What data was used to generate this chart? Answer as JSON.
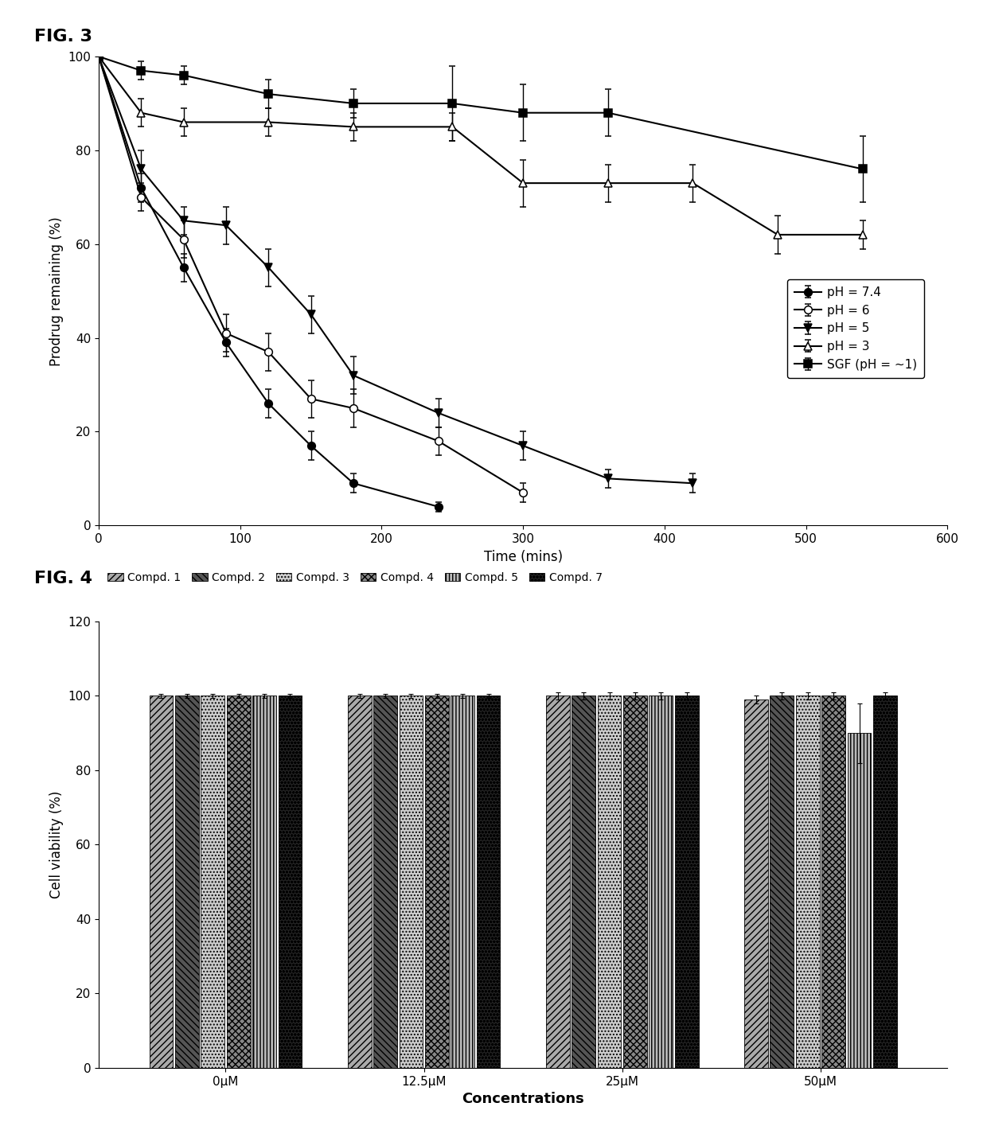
{
  "fig3": {
    "xlabel": "Time (mins)",
    "ylabel": "Prodrug remaining (%)",
    "xlim": [
      0,
      600
    ],
    "ylim": [
      0,
      100
    ],
    "xticks": [
      0,
      100,
      200,
      300,
      400,
      500,
      600
    ],
    "yticks": [
      0,
      20,
      40,
      60,
      80,
      100
    ],
    "series": [
      {
        "label": "pH = 7.4",
        "marker": "o",
        "fillstyle": "full",
        "x": [
          0,
          30,
          60,
          90,
          120,
          150,
          180,
          240
        ],
        "y": [
          100,
          72,
          55,
          39,
          26,
          17,
          9,
          4
        ],
        "yerr": [
          0,
          3,
          3,
          3,
          3,
          3,
          2,
          1
        ]
      },
      {
        "label": "pH = 6",
        "marker": "o",
        "fillstyle": "none",
        "x": [
          0,
          30,
          60,
          90,
          120,
          150,
          180,
          240,
          300
        ],
        "y": [
          100,
          70,
          61,
          41,
          37,
          27,
          25,
          18,
          7
        ],
        "yerr": [
          0,
          3,
          4,
          4,
          4,
          4,
          4,
          3,
          2
        ]
      },
      {
        "label": "pH = 5",
        "marker": "v",
        "fillstyle": "full",
        "x": [
          0,
          30,
          60,
          90,
          120,
          150,
          180,
          240,
          300,
          360,
          420
        ],
        "y": [
          100,
          76,
          65,
          64,
          55,
          45,
          32,
          24,
          17,
          10,
          9
        ],
        "yerr": [
          0,
          4,
          3,
          4,
          4,
          4,
          4,
          3,
          3,
          2,
          2
        ]
      },
      {
        "label": "pH = 3",
        "marker": "^",
        "fillstyle": "none",
        "x": [
          0,
          30,
          60,
          120,
          180,
          250,
          300,
          360,
          420,
          480,
          540
        ],
        "y": [
          100,
          88,
          86,
          86,
          85,
          85,
          73,
          73,
          73,
          62,
          62
        ],
        "yerr": [
          0,
          3,
          3,
          3,
          3,
          3,
          5,
          4,
          4,
          4,
          3
        ]
      },
      {
        "label": "SGF (pH = ∼1)",
        "marker": "s",
        "fillstyle": "full",
        "x": [
          0,
          30,
          60,
          120,
          180,
          250,
          300,
          360,
          540
        ],
        "y": [
          100,
          97,
          96,
          92,
          90,
          90,
          88,
          88,
          76
        ],
        "yerr": [
          0,
          2,
          2,
          3,
          3,
          8,
          6,
          5,
          7
        ]
      }
    ]
  },
  "fig4": {
    "xlabel": "Concentrations",
    "ylabel": "Cell viability (%)",
    "ylim": [
      0,
      120
    ],
    "yticks": [
      0,
      20,
      40,
      60,
      80,
      100,
      120
    ],
    "groups": [
      "0μM",
      "12.5μM",
      "25μM",
      "50μM"
    ],
    "compounds": [
      "Compd. 1",
      "Compd. 2",
      "Compd. 3",
      "Compd. 4",
      "Compd. 5",
      "Compd. 7"
    ],
    "values": [
      [
        100,
        100,
        100,
        100,
        100,
        100
      ],
      [
        100,
        100,
        100,
        100,
        100,
        100
      ],
      [
        100,
        100,
        100,
        100,
        100,
        100
      ],
      [
        99,
        100,
        100,
        100,
        90,
        100
      ]
    ],
    "yerr": [
      [
        0.5,
        0.5,
        0.5,
        0.5,
        0.5,
        0.5
      ],
      [
        0.5,
        0.5,
        0.5,
        0.5,
        0.5,
        0.5
      ],
      [
        1.0,
        1.0,
        1.0,
        1.0,
        1.0,
        1.0
      ],
      [
        1.0,
        1.0,
        1.0,
        1.0,
        8.0,
        1.0
      ]
    ],
    "hatch_patterns": [
      "////",
      "\\\\\\\\",
      "....",
      "xxxx",
      "||||",
      "oooo"
    ],
    "bar_facecolors": [
      "#aaaaaa",
      "#555555",
      "#cccccc",
      "#888888",
      "#bbbbbb",
      "#222222"
    ],
    "legend_hatch_colors": [
      "#aaaaaa",
      "#555555",
      "#cccccc",
      "#888888",
      "#bbbbbb",
      "#222222"
    ]
  }
}
